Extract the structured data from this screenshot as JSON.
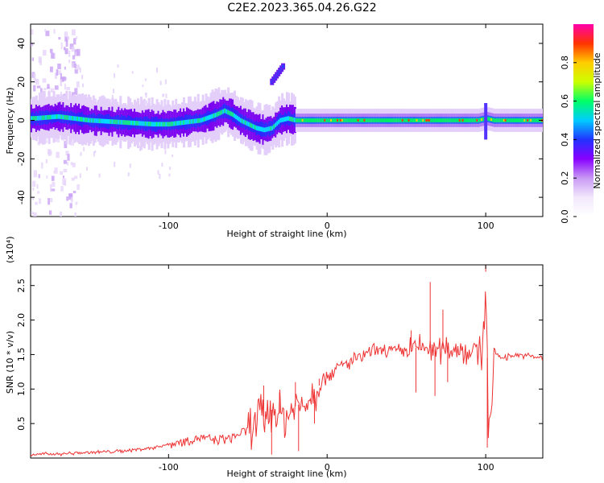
{
  "title": "C2E2.2023.365.04.26.G22",
  "chart_data": [
    {
      "type": "heatmap",
      "xlabel": "Height of straight line (km)",
      "ylabel": "Frequency (Hz)",
      "xlim": [
        -187,
        136
      ],
      "ylim": [
        -50,
        50
      ],
      "x_ticks": [
        -100,
        0,
        100
      ],
      "x_tick_labels": [
        "-100",
        "0",
        "100"
      ],
      "y_ticks": [
        -40,
        -20,
        0,
        20,
        40
      ],
      "y_tick_labels": [
        "-40",
        "-20",
        "0",
        "20",
        "40"
      ],
      "colorbar": {
        "label": "Normalized spectral amplitude",
        "range": [
          0,
          1
        ],
        "ticks": [
          0.0,
          0.2,
          0.4,
          0.6,
          0.8
        ],
        "tick_labels": [
          "0.0",
          "0.2",
          "0.4",
          "0.6",
          "0.8"
        ],
        "colors": [
          "#ffffff",
          "#e8d0f8",
          "#8800ff",
          "#2222ff",
          "#00ccff",
          "#00ff66",
          "#ccff00",
          "#ffcc00",
          "#ff3300",
          "#ff00aa"
        ]
      },
      "ridge": {
        "x": [
          -185,
          -170,
          -150,
          -130,
          -110,
          -100,
          -90,
          -80,
          -70,
          -65,
          -60,
          -55,
          -50,
          -45,
          -40,
          -35,
          -30,
          -25,
          -20,
          -10,
          0,
          20,
          40,
          60,
          80,
          95,
          100,
          105,
          120,
          136
        ],
        "y": [
          1,
          2,
          0,
          -1,
          -2,
          -2,
          -1,
          0,
          3,
          5,
          3,
          0,
          -2,
          -4,
          -5,
          -4,
          0,
          1,
          0,
          0,
          0,
          0,
          0,
          0,
          0,
          0,
          1,
          0,
          0,
          0
        ]
      },
      "streak": {
        "x": [
          -35,
          -28
        ],
        "y": [
          20,
          28
        ]
      }
    },
    {
      "type": "line",
      "xlabel": "Height of straight line (km)",
      "ylabel": "SNR (10 * v/v)",
      "yscale_label": "(x10⁴)",
      "xlim": [
        -187,
        136
      ],
      "ylim": [
        0,
        2.8
      ],
      "x_ticks": [
        -100,
        0,
        100
      ],
      "x_tick_labels": [
        "-100",
        "0",
        "100"
      ],
      "y_ticks": [
        0.5,
        1.0,
        1.5,
        2.0,
        2.5
      ],
      "y_tick_labels": [
        "0.5",
        "1.0",
        "1.5",
        "2.0",
        "2.5"
      ],
      "series": [
        {
          "color": "#ee3333",
          "x": [
            -187,
            -170,
            -150,
            -130,
            -110,
            -100,
            -90,
            -80,
            -70,
            -60,
            -50,
            -45,
            -40,
            -35,
            -30,
            -25,
            -20,
            -15,
            -10,
            -5,
            0,
            10,
            20,
            30,
            40,
            50,
            55,
            60,
            65,
            70,
            75,
            80,
            90,
            95,
            98,
            100,
            102,
            105,
            110,
            120,
            136
          ],
          "y": [
            0.05,
            0.06,
            0.08,
            0.1,
            0.15,
            0.2,
            0.25,
            0.3,
            0.25,
            0.3,
            0.4,
            0.55,
            0.6,
            0.7,
            0.65,
            0.6,
            0.75,
            0.8,
            0.9,
            1.05,
            1.2,
            1.35,
            1.45,
            1.55,
            1.55,
            1.55,
            1.6,
            1.6,
            1.6,
            1.55,
            1.6,
            1.6,
            1.55,
            1.55,
            1.5,
            2.7,
            0.2,
            1.55,
            1.45,
            1.5,
            1.45
          ],
          "spikes": [
            {
              "x": 53,
              "y": 1.85
            },
            {
              "x": 56,
              "y": 0.95
            },
            {
              "x": 65,
              "y": 2.55
            },
            {
              "x": 68,
              "y": 0.9
            },
            {
              "x": 73,
              "y": 2.15
            },
            {
              "x": 76,
              "y": 1.1
            },
            {
              "x": 100,
              "y": 2.8
            },
            {
              "x": 101,
              "y": 0.15
            },
            {
              "x": -30,
              "y": 0.95
            },
            {
              "x": -35,
              "y": 0.05
            },
            {
              "x": -20,
              "y": 1.1
            },
            {
              "x": -18,
              "y": 0.1
            },
            {
              "x": -40,
              "y": 1.05
            },
            {
              "x": -5,
              "y": 1.15
            },
            {
              "x": -8,
              "y": 0.5
            }
          ]
        }
      ]
    }
  ]
}
